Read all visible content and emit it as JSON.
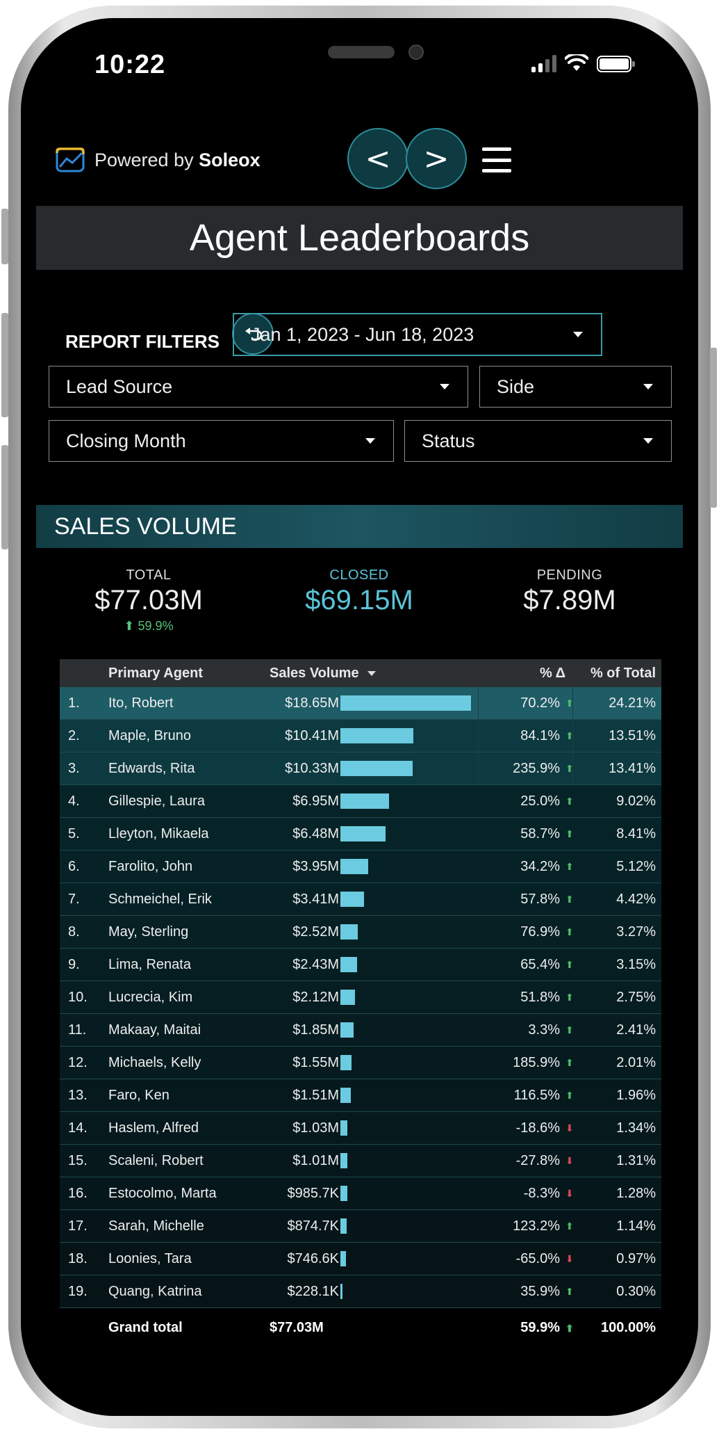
{
  "status_bar": {
    "time": "10:22"
  },
  "header": {
    "logo_prefix": "Powered by ",
    "logo_brand": "Soleox",
    "prev_label": "<",
    "next_label": ">"
  },
  "page_title": "Agent Leaderboards",
  "filters": {
    "label": "REPORT FILTERS",
    "date_range": "Jan 1, 2023 - Jun 18, 2023",
    "lead_source": "Lead Source",
    "side": "Side",
    "closing_month": "Closing Month",
    "status": "Status"
  },
  "section_title": "SALES VOLUME",
  "kpis": {
    "total_label": "TOTAL",
    "total_value": "$77.03M",
    "total_change": "59.9%",
    "closed_label": "CLOSED",
    "closed_value": "$69.15M",
    "pending_label": "PENDING",
    "pending_value": "$7.89M"
  },
  "table": {
    "headers": {
      "agent": "Primary Agent",
      "volume": "Sales Volume",
      "pct_change": "% Δ",
      "pct_total": "% of Total"
    },
    "rows": [
      {
        "rank": "1.",
        "name": "Ito, Robert",
        "volume": "$18.65M",
        "bar": 18.65,
        "pct": "70.2%",
        "dir": "up",
        "share": "24.21%"
      },
      {
        "rank": "2.",
        "name": "Maple, Bruno",
        "volume": "$10.41M",
        "bar": 10.41,
        "pct": "84.1%",
        "dir": "up",
        "share": "13.51%"
      },
      {
        "rank": "3.",
        "name": "Edwards, Rita",
        "volume": "$10.33M",
        "bar": 10.33,
        "pct": "235.9%",
        "dir": "up",
        "share": "13.41%"
      },
      {
        "rank": "4.",
        "name": "Gillespie, Laura",
        "volume": "$6.95M",
        "bar": 6.95,
        "pct": "25.0%",
        "dir": "up",
        "share": "9.02%"
      },
      {
        "rank": "5.",
        "name": "Lleyton, Mikaela",
        "volume": "$6.48M",
        "bar": 6.48,
        "pct": "58.7%",
        "dir": "up",
        "share": "8.41%"
      },
      {
        "rank": "6.",
        "name": "Farolito, John",
        "volume": "$3.95M",
        "bar": 3.95,
        "pct": "34.2%",
        "dir": "up",
        "share": "5.12%"
      },
      {
        "rank": "7.",
        "name": "Schmeichel, Erik",
        "volume": "$3.41M",
        "bar": 3.41,
        "pct": "57.8%",
        "dir": "up",
        "share": "4.42%"
      },
      {
        "rank": "8.",
        "name": "May, Sterling",
        "volume": "$2.52M",
        "bar": 2.52,
        "pct": "76.9%",
        "dir": "up",
        "share": "3.27%"
      },
      {
        "rank": "9.",
        "name": "Lima, Renata",
        "volume": "$2.43M",
        "bar": 2.43,
        "pct": "65.4%",
        "dir": "up",
        "share": "3.15%"
      },
      {
        "rank": "10.",
        "name": "Lucrecia, Kim",
        "volume": "$2.12M",
        "bar": 2.12,
        "pct": "51.8%",
        "dir": "up",
        "share": "2.75%"
      },
      {
        "rank": "11.",
        "name": "Makaay, Maitai",
        "volume": "$1.85M",
        "bar": 1.85,
        "pct": "3.3%",
        "dir": "up",
        "share": "2.41%"
      },
      {
        "rank": "12.",
        "name": "Michaels, Kelly",
        "volume": "$1.55M",
        "bar": 1.55,
        "pct": "185.9%",
        "dir": "up",
        "share": "2.01%"
      },
      {
        "rank": "13.",
        "name": "Faro, Ken",
        "volume": "$1.51M",
        "bar": 1.51,
        "pct": "116.5%",
        "dir": "up",
        "share": "1.96%"
      },
      {
        "rank": "14.",
        "name": "Haslem, Alfred",
        "volume": "$1.03M",
        "bar": 1.03,
        "pct": "-18.6%",
        "dir": "down",
        "share": "1.34%"
      },
      {
        "rank": "15.",
        "name": "Scaleni, Robert",
        "volume": "$1.01M",
        "bar": 1.01,
        "pct": "-27.8%",
        "dir": "down",
        "share": "1.31%"
      },
      {
        "rank": "16.",
        "name": "Estocolmo, Marta",
        "volume": "$985.7K",
        "bar": 0.9857,
        "pct": "-8.3%",
        "dir": "down",
        "share": "1.28%"
      },
      {
        "rank": "17.",
        "name": "Sarah, Michelle",
        "volume": "$874.7K",
        "bar": 0.8747,
        "pct": "123.2%",
        "dir": "up",
        "share": "1.14%"
      },
      {
        "rank": "18.",
        "name": "Loonies, Tara",
        "volume": "$746.6K",
        "bar": 0.7466,
        "pct": "-65.0%",
        "dir": "down",
        "share": "0.97%"
      },
      {
        "rank": "19.",
        "name": "Quang, Katrina",
        "volume": "$228.1K",
        "bar": 0.2281,
        "pct": "35.9%",
        "dir": "up",
        "share": "0.30%"
      }
    ],
    "grand_total": {
      "label": "Grand total",
      "volume": "$77.03M",
      "pct": "59.9%",
      "share": "100.00%"
    }
  },
  "colors": {
    "accent": "#5bc4d8",
    "bar": "#6bcbe0",
    "up": "#4fbf6a",
    "down": "#e0495a",
    "row_highlight": "#1e5c66"
  }
}
